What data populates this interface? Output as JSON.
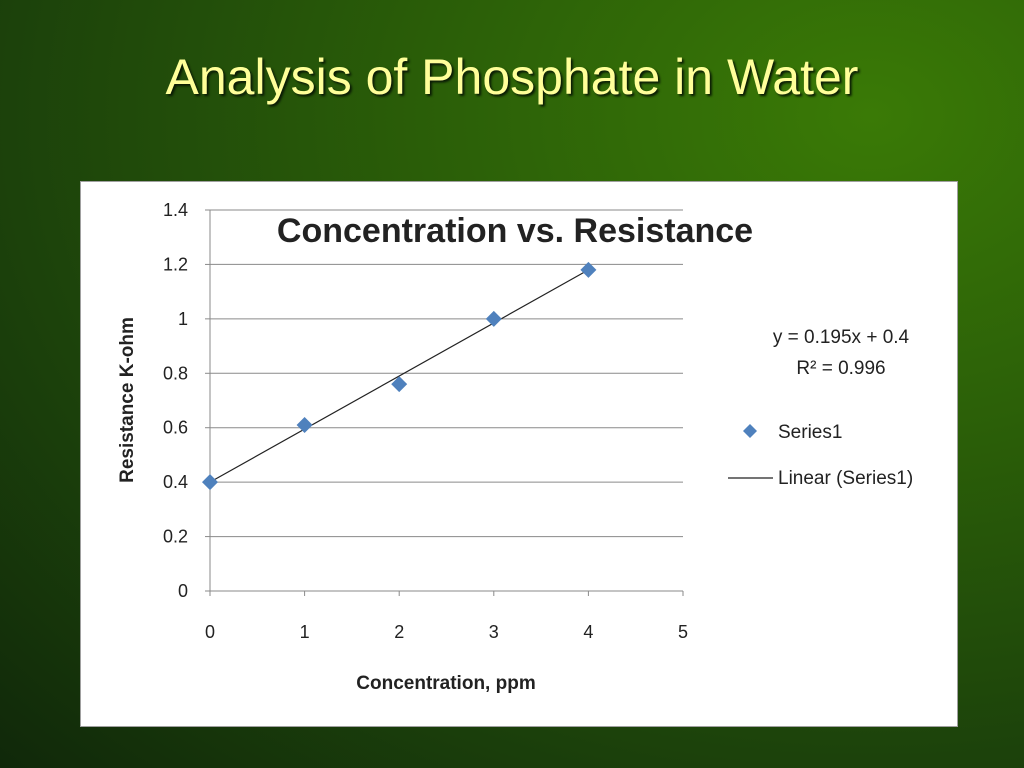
{
  "slide": {
    "title": "Analysis of Phosphate in Water"
  },
  "chart_data": {
    "type": "scatter",
    "title": "Concentration vs. Resistance",
    "xlabel": "Concentration, ppm",
    "ylabel": "Resistance K-ohm",
    "xlim": [
      0,
      5
    ],
    "ylim": [
      0,
      1.4
    ],
    "x_ticks": [
      "0",
      "1",
      "2",
      "3",
      "4",
      "5"
    ],
    "y_ticks": [
      "0",
      "0.2",
      "0.4",
      "0.6",
      "0.8",
      "1",
      "1.2",
      "1.4"
    ],
    "grid": "horizontal",
    "legend_position": "right",
    "series": [
      {
        "name": "Series1",
        "color": "#4f81bd",
        "marker": "diamond",
        "x": [
          0,
          1,
          2,
          3,
          4
        ],
        "y": [
          0.4,
          0.61,
          0.76,
          1.0,
          1.18
        ]
      }
    ],
    "trendline": {
      "name": "Linear (Series1)",
      "slope": 0.195,
      "intercept": 0.4,
      "x_range": [
        0,
        4
      ],
      "color": "#222222"
    },
    "annotations": {
      "equation": "y = 0.195x + 0.4",
      "r_squared": "R² = 0.996"
    }
  }
}
